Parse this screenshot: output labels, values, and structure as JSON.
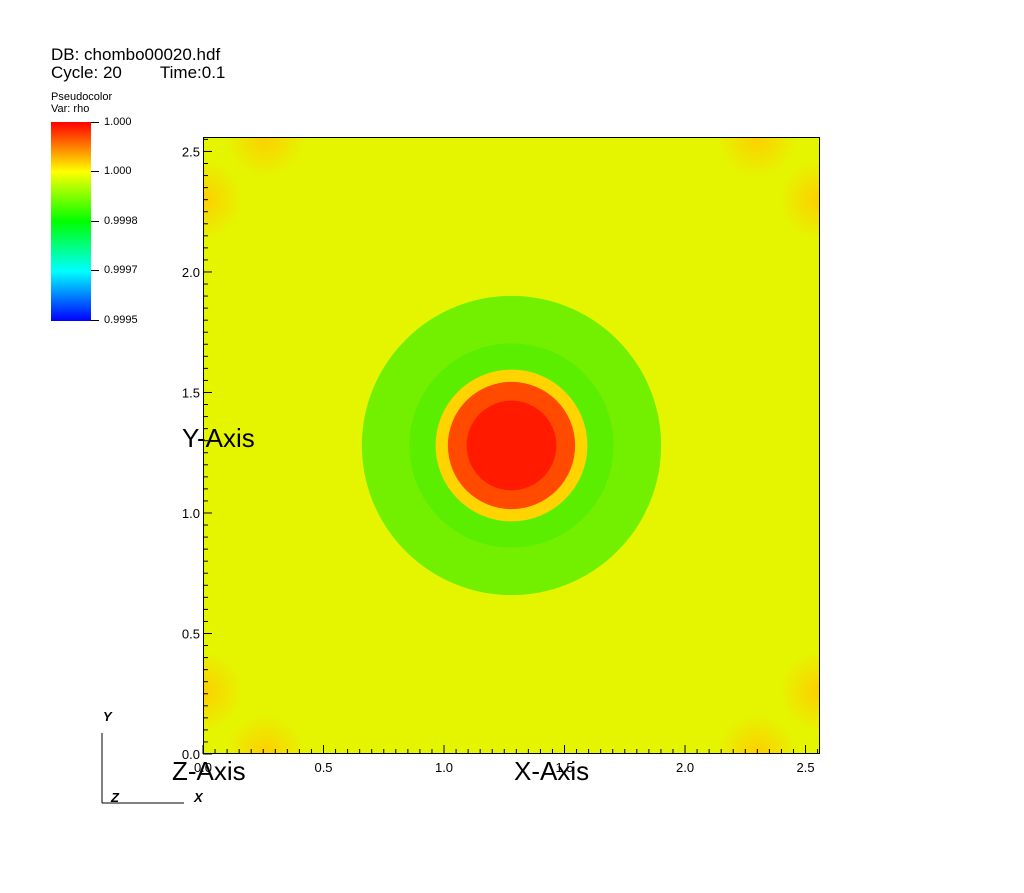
{
  "db_info": {
    "db_line": "DB: chombo00020.hdf",
    "cycle_line": "Cycle: 20",
    "time_line": "Time:0.1"
  },
  "legend": {
    "plot_type": "Pseudocolor",
    "var_line": "Var: rho",
    "labels": [
      "1.000",
      "1.000",
      "0.9998",
      "0.9997",
      "0.9995"
    ],
    "colors": [
      "#ff0000",
      "#ffff00",
      "#00ff00",
      "#00ffff",
      "#0000ff"
    ]
  },
  "chart_data": {
    "type": "heatmap",
    "variable": "rho",
    "xlabel": "X-Axis",
    "ylabel": "Y-Axis",
    "zlabel": "Z-Axis",
    "xlim": [
      0.0,
      2.56
    ],
    "ylim": [
      0.0,
      2.56
    ],
    "x_ticks": [
      "0.0",
      "0.5",
      "1.0",
      "1.5",
      "2.0",
      "2.5"
    ],
    "y_ticks": [
      "0.0",
      "0.5",
      "1.0",
      "1.5",
      "2.0",
      "2.5"
    ],
    "color_range": [
      0.9995,
      1.0
    ],
    "features": {
      "peak_center": [
        1.28,
        1.28
      ],
      "peak_radius": 0.3,
      "ring_radius": 0.62,
      "background_color": "#e5f500",
      "ring_color": "#66f000",
      "peak_color": "#ff1a00",
      "corner_color": "#ffd200"
    }
  },
  "triad": {
    "y": "Y",
    "z": "Z",
    "x": "X"
  }
}
